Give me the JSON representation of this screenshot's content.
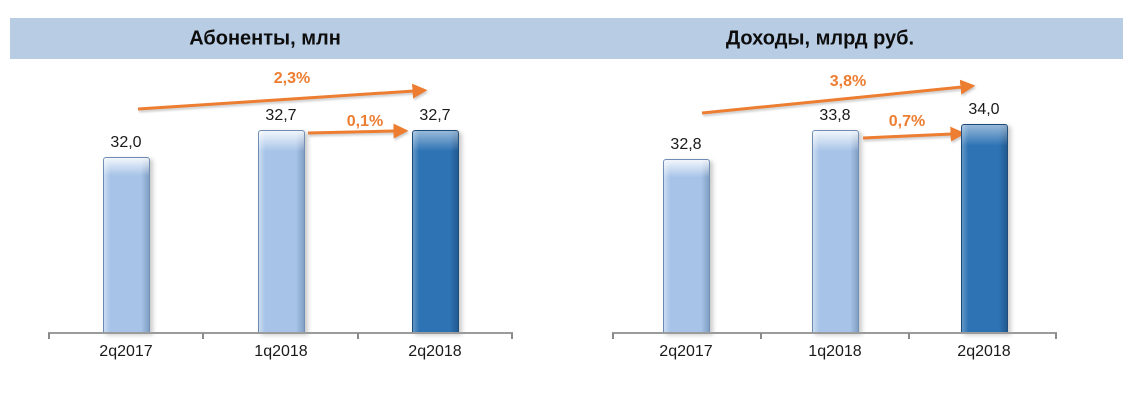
{
  "header": {
    "background_color": "#b8cce4"
  },
  "colors": {
    "bar_default": "#a7c4e8",
    "bar_highlight": "#2e73b4",
    "annotation_accent": "#ed7d31",
    "axis_line": "#9b9b9b"
  },
  "chart_data": [
    {
      "type": "bar",
      "title": "Абоненты, млн",
      "categories": [
        "2q2017",
        "1q2018",
        "2q2018"
      ],
      "values": [
        32.0,
        32.7,
        32.7
      ],
      "value_labels": [
        "32,0",
        "32,7",
        "32,7"
      ],
      "highlight_index": 2,
      "y_axis_visible": false,
      "gridlines": false,
      "annotations": [
        {
          "label": "2,3%",
          "from_category": "2q2017",
          "to_category": "2q2018",
          "type": "growth-arrow"
        },
        {
          "label": "0,1%",
          "from_category": "1q2018",
          "to_category": "2q2018",
          "type": "growth-arrow"
        }
      ]
    },
    {
      "type": "bar",
      "title": "Доходы, млрд руб.",
      "categories": [
        "2q2017",
        "1q2018",
        "2q2018"
      ],
      "values": [
        32.8,
        33.8,
        34.0
      ],
      "value_labels": [
        "32,8",
        "33,8",
        "34,0"
      ],
      "highlight_index": 2,
      "y_axis_visible": false,
      "gridlines": false,
      "annotations": [
        {
          "label": "3,8%",
          "from_category": "2q2017",
          "to_category": "2q2018",
          "type": "growth-arrow"
        },
        {
          "label": "0,7%",
          "from_category": "1q2018",
          "to_category": "2q2018",
          "type": "growth-arrow"
        }
      ]
    }
  ]
}
